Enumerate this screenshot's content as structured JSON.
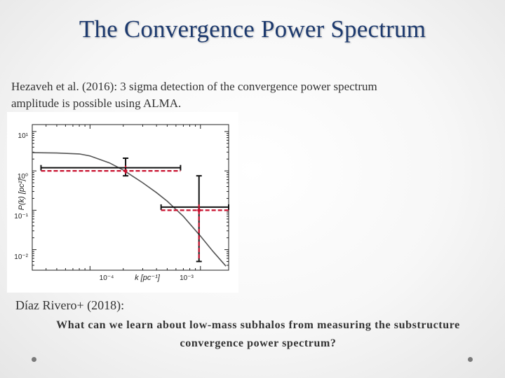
{
  "slide": {
    "title": "The Convergence Power Spectrum",
    "intro_line1": "Hezaveh et al. (2016): 3 sigma detection of the convergence power spectrum",
    "intro_line2": "amplitude is possible using ALMA.",
    "reference": "Díaz Rivero+ (2018):",
    "question_line1": "What can we learn about low-mass subhalos from measuring the substructure",
    "question_line2": "convergence power spectrum?"
  },
  "figure": {
    "ylabel": "P(k) [pc²]",
    "xlabel": "k [pc⁻¹]",
    "ytick_labels": [
      "10¹",
      "10⁰",
      "10⁻¹",
      "10⁻²"
    ],
    "xtick_labels": [
      "10⁻⁴",
      "10⁻³"
    ]
  },
  "chart_data": {
    "type": "line",
    "title": "",
    "xlabel": "k [pc⁻¹]",
    "ylabel": "P(k) [pc²]",
    "xscale": "log",
    "yscale": "log",
    "xlim": [
      3e-05,
      0.0018
    ],
    "ylim": [
      0.003,
      15
    ],
    "series": [
      {
        "style": "solid gray curve",
        "x": [
          3e-05,
          5e-05,
          8e-05,
          0.0001,
          0.00015,
          0.0002,
          0.0003,
          0.0004,
          0.0005,
          0.0007,
          0.001,
          0.0013,
          0.0017
        ],
        "y": [
          2.9,
          2.85,
          2.7,
          2.4,
          1.6,
          1.05,
          0.5,
          0.28,
          0.17,
          0.07,
          0.022,
          0.009,
          0.0038
        ]
      }
    ],
    "error_points": [
      {
        "style": "black",
        "x": 0.00021,
        "y": 1.2,
        "xerr": [
          3.6e-05,
          0.00066
        ],
        "yerr": [
          0.75,
          2.1
        ]
      },
      {
        "style": "black",
        "x": 0.00097,
        "y": 0.12,
        "xerr": [
          0.00044,
          0.0018
        ],
        "yerr": [
          0.005,
          0.75
        ]
      },
      {
        "style": "red dashed",
        "x": 0.00021,
        "y": 1.0,
        "xerr": [
          3.6e-05,
          0.00066
        ],
        "yerr": [
          0.85,
          1.35
        ]
      },
      {
        "style": "red dashed",
        "x": 0.00097,
        "y": 0.1,
        "xerr": [
          0.00044,
          0.0018
        ],
        "yerr": [
          0.006,
          0.14
        ]
      }
    ]
  }
}
